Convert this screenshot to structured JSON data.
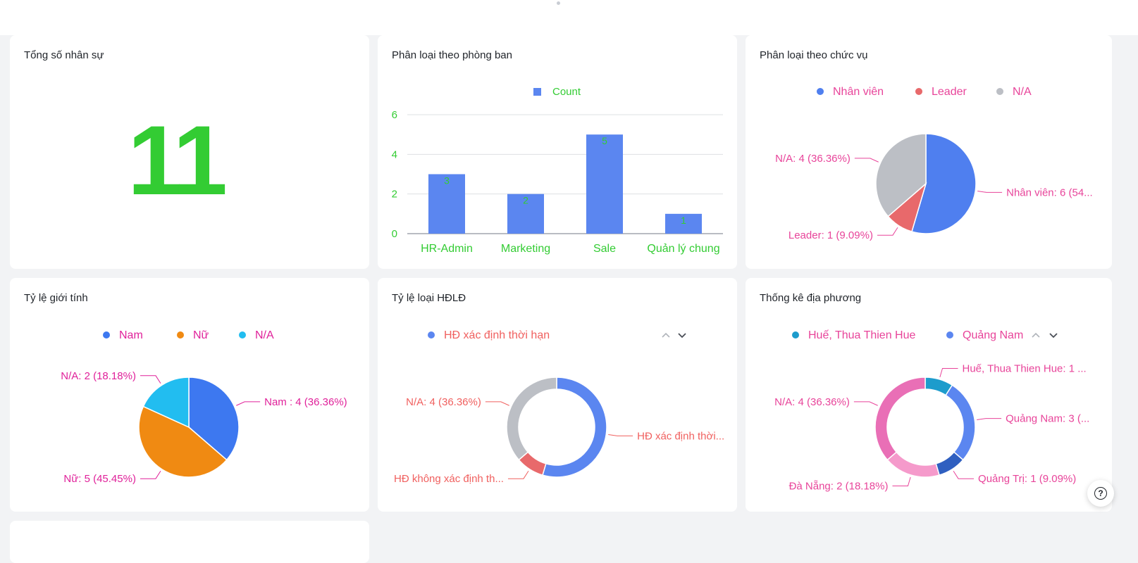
{
  "cards": {
    "total": {
      "title": "Tổng số nhân sự",
      "value": "11",
      "value_color": "#33cc33"
    },
    "department": {
      "title": "Phân loại theo phòng ban",
      "chart_data": {
        "type": "bar",
        "legend": [
          "Count"
        ],
        "categories": [
          "HR-Admin",
          "Marketing",
          "Sale",
          "Quản lý chung"
        ],
        "series": [
          {
            "name": "Count",
            "values": [
              3,
              2,
              5,
              1
            ],
            "color": "#5b86f0"
          }
        ],
        "yticks": [
          "0",
          "2",
          "4",
          "6"
        ],
        "ylim": [
          0,
          6
        ],
        "grid": true,
        "label_color": "#33cc33"
      }
    },
    "position": {
      "title": "Phân loại theo chức vụ",
      "chart_data": {
        "type": "pie",
        "legend": [
          "Nhân viên",
          "Leader",
          "N/A"
        ],
        "slices": [
          {
            "name": "Nhân viên",
            "value": 6,
            "label": "Nhân viên: 6 (54...",
            "color": "#4f7fef"
          },
          {
            "name": "Leader",
            "value": 1,
            "label": "Leader: 1 (9.09%)",
            "color": "#e8696b"
          },
          {
            "name": "N/A",
            "value": 4,
            "label": "N/A: 4 (36.36%)",
            "color": "#bcbfc5"
          }
        ],
        "label_color": "#e8449a"
      }
    },
    "gender": {
      "title": "Tỷ lệ giới tính",
      "chart_data": {
        "type": "pie",
        "legend": [
          "Nam",
          "Nữ",
          "N/A"
        ],
        "slices": [
          {
            "name": "Nam",
            "value": 4,
            "label": "Nam : 4 (36.36%)",
            "color": "#3d78f0"
          },
          {
            "name": "Nữ",
            "value": 5,
            "label": "Nữ: 5 (45.45%)",
            "color": "#f08a12"
          },
          {
            "name": "N/A",
            "value": 2,
            "label": "N/A: 2 (18.18%)",
            "color": "#22bdf0"
          }
        ],
        "label_color": "#e0219a"
      }
    },
    "contract": {
      "title": "Tỷ lệ loại HĐLĐ",
      "chart_data": {
        "type": "donut",
        "legend": [
          "HĐ xác định thời hạn"
        ],
        "slices": [
          {
            "name": "HĐ xác định thời hạn",
            "value": 6,
            "label": "HĐ xác định thời...",
            "color": "#5b86f0"
          },
          {
            "name": "HĐ không xác định thời hạn",
            "value": 1,
            "label": "HĐ không xác định th...",
            "color": "#e8696b"
          },
          {
            "name": "N/A",
            "value": 4,
            "label": "N/A: 4 (36.36%)",
            "color": "#bcbfc5"
          }
        ],
        "label_color": "#f0605f"
      }
    },
    "locality": {
      "title": "Thống kê địa phương",
      "chart_data": {
        "type": "donut",
        "legend": [
          "Huế, Thua Thien Hue",
          "Quảng Nam"
        ],
        "slices": [
          {
            "name": "Huế, Thua Thien Hue",
            "value": 1,
            "label": "Huế, Thua Thien Hue: 1 ...",
            "color": "#1d9ccc"
          },
          {
            "name": "Quảng Nam",
            "value": 3,
            "label": "Quảng Nam: 3 (...",
            "color": "#5b86f0"
          },
          {
            "name": "Quảng Trị",
            "value": 1,
            "label": "Quảng Trị: 1 (9.09%)",
            "color": "#2f5fc0"
          },
          {
            "name": "Đà Nẵng",
            "value": 2,
            "label": "Đà Nẵng: 2 (18.18%)",
            "color": "#f59acb"
          },
          {
            "name": "N/A",
            "value": 4,
            "label": "N/A: 4 (36.36%)",
            "color": "#e96fb6"
          }
        ],
        "label_color": "#e8449a"
      }
    }
  },
  "icons": {
    "help": "help-circle-icon",
    "pager_up": "chevron-up-icon",
    "pager_down": "chevron-down-icon"
  },
  "help_glyph": "?"
}
